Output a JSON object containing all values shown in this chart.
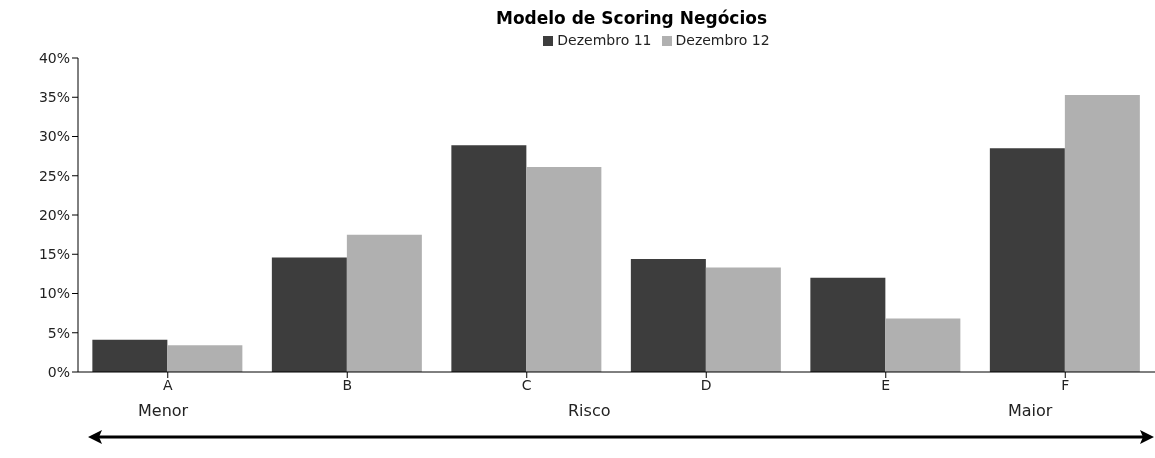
{
  "chart_data": {
    "type": "bar",
    "title": "Modelo de Scoring Negócios",
    "categories": [
      "A",
      "B",
      "C",
      "D",
      "E",
      "F"
    ],
    "series": [
      {
        "name": "Dezembro 11",
        "color": "#3d3d3d",
        "values": [
          4.1,
          14.6,
          28.9,
          14.4,
          12.0,
          28.5
        ]
      },
      {
        "name": "Dezembro 12",
        "color": "#b0b0b0",
        "values": [
          3.4,
          17.5,
          26.1,
          13.3,
          6.8,
          35.3
        ]
      }
    ],
    "ylim": [
      0,
      40
    ],
    "yticks": [
      {
        "value": 0,
        "label": "0%"
      },
      {
        "value": 5,
        "label": "5%"
      },
      {
        "value": 10,
        "label": "10%"
      },
      {
        "value": 15,
        "label": "15%"
      },
      {
        "value": 20,
        "label": "20%"
      },
      {
        "value": 25,
        "label": "25%"
      },
      {
        "value": 30,
        "label": "30%"
      },
      {
        "value": 35,
        "label": "35%"
      },
      {
        "value": 40,
        "label": "40%"
      }
    ],
    "legend": "top",
    "grid": false,
    "annotations": [
      "Menor",
      "Risco",
      "Maior"
    ]
  }
}
